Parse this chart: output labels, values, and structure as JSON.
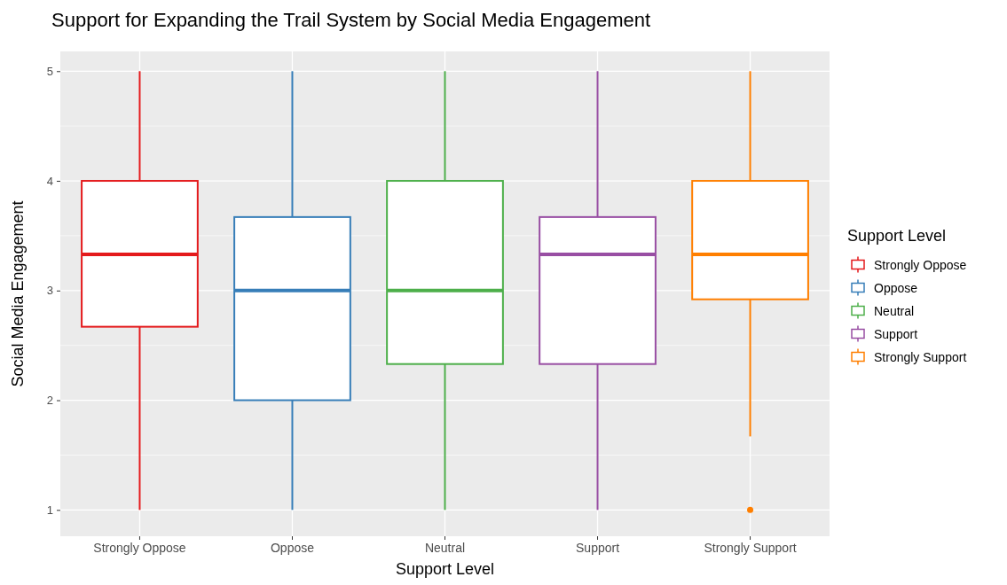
{
  "chart_data": {
    "type": "box",
    "title": "Support for Expanding the Trail System by Social Media Engagement",
    "xlabel": "Support Level",
    "ylabel": "Social Media Engagement",
    "legend_title": "Support Level",
    "categories": [
      "Strongly Oppose",
      "Oppose",
      "Neutral",
      "Support",
      "Strongly Support"
    ],
    "series": [
      {
        "name": "Strongly Oppose",
        "color": "#e41a1c",
        "boxes": [
          {
            "low": 1,
            "q1": 2.67,
            "median": 3.33,
            "q3": 4,
            "high": 5
          },
          null,
          null,
          null,
          null
        ]
      },
      {
        "name": "Oppose",
        "color": "#377eb8",
        "boxes": [
          null,
          {
            "low": 1,
            "q1": 2,
            "median": 3,
            "q3": 3.67,
            "high": 5
          },
          null,
          null,
          null
        ]
      },
      {
        "name": "Neutral",
        "color": "#4daf4a",
        "boxes": [
          null,
          null,
          {
            "low": 1,
            "q1": 2.33,
            "median": 3,
            "q3": 4,
            "high": 5
          },
          null,
          null
        ]
      },
      {
        "name": "Support",
        "color": "#984ea3",
        "boxes": [
          null,
          null,
          null,
          {
            "low": 1,
            "q1": 2.33,
            "median": 3.33,
            "q3": 3.67,
            "high": 5
          },
          null
        ]
      },
      {
        "name": "Strongly Support",
        "color": "#ff7f00",
        "boxes": [
          null,
          null,
          null,
          null,
          {
            "low": 1.67,
            "q1": 2.92,
            "median": 3.33,
            "q3": 4,
            "high": 5,
            "outliers": [
              1
            ]
          }
        ]
      }
    ],
    "ylim": [
      0.76,
      5.18
    ],
    "yticks": [
      1,
      2,
      3,
      4,
      5
    ],
    "grid": true,
    "legend": "right"
  }
}
